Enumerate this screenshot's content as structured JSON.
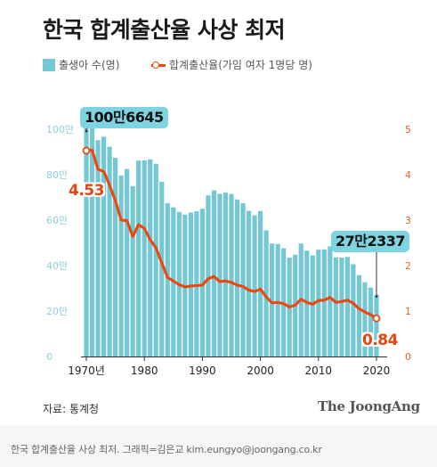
{
  "title": "한국 합계출산율 사상 최저",
  "legend": {
    "bars": "출생아 수(명)",
    "line": "합계출산율(가임 여자 1명당 명)"
  },
  "source": "자료: 통계청",
  "brand": "The JoongAng",
  "footer": "한국 합계출산율 사상 최저. 그래픽=김은교 kim.eungyo@joongang.co.kr",
  "colors": {
    "bar": "#74c8d6",
    "line": "#ea4a12",
    "left_axis": "#8fd0dc",
    "right_axis": "#e8622a",
    "callout_bg": "#7ed4e0"
  },
  "chart_data": {
    "type": "bar",
    "x_tick_labels": [
      "1970년",
      "1980",
      "1990",
      "2000",
      "2010",
      "2020"
    ],
    "x_ticks": [
      1970,
      1980,
      1990,
      2000,
      2010,
      2020
    ],
    "left_axis": {
      "ticks": [
        0,
        20,
        40,
        60,
        80,
        100
      ],
      "tick_labels": [
        "0",
        "20만",
        "40만",
        "60만",
        "80만",
        "100만"
      ],
      "ylim": [
        0,
        100
      ]
    },
    "right_axis": {
      "ticks": [
        0,
        1,
        2,
        3,
        4,
        5
      ],
      "tick_labels": [
        "0",
        "1",
        "2",
        "3",
        "4",
        "5"
      ],
      "ylim": [
        0,
        5
      ]
    },
    "grid": false,
    "years": [
      1970,
      1971,
      1972,
      1973,
      1974,
      1975,
      1976,
      1977,
      1978,
      1979,
      1980,
      1981,
      1982,
      1983,
      1984,
      1985,
      1986,
      1987,
      1988,
      1989,
      1990,
      1991,
      1992,
      1993,
      1994,
      1995,
      1996,
      1997,
      1998,
      1999,
      2000,
      2001,
      2002,
      2003,
      2004,
      2005,
      2006,
      2007,
      2008,
      2009,
      2010,
      2011,
      2012,
      2013,
      2014,
      2015,
      2016,
      2017,
      2018,
      2019,
      2020
    ],
    "series": [
      {
        "type": "bar",
        "values": [
          100.7,
          102.4,
          95.2,
          96.7,
          92.3,
          87.4,
          79.6,
          82.5,
          75.0,
          86.2,
          86.3,
          86.7,
          84.8,
          76.9,
          67.5,
          65.6,
          63.6,
          62.4,
          63.3,
          63.9,
          65.0,
          70.9,
          73.1,
          71.6,
          72.1,
          71.5,
          69.1,
          67.5,
          64.1,
          62.1,
          64.0,
          55.5,
          49.7,
          49.5,
          47.6,
          43.5,
          44.8,
          49.7,
          46.6,
          44.5,
          47.0,
          47.1,
          48.5,
          43.6,
          43.5,
          43.8,
          40.6,
          35.8,
          32.7,
          30.3,
          27.2
        ]
      },
      {
        "type": "line",
        "values": [
          4.53,
          4.54,
          4.12,
          4.07,
          3.77,
          3.43,
          3.0,
          2.99,
          2.64,
          2.9,
          2.82,
          2.57,
          2.39,
          2.06,
          1.74,
          1.66,
          1.58,
          1.53,
          1.55,
          1.56,
          1.57,
          1.71,
          1.76,
          1.65,
          1.66,
          1.63,
          1.57,
          1.54,
          1.46,
          1.43,
          1.48,
          1.31,
          1.18,
          1.19,
          1.16,
          1.09,
          1.13,
          1.26,
          1.19,
          1.15,
          1.23,
          1.24,
          1.3,
          1.19,
          1.21,
          1.24,
          1.17,
          1.05,
          0.98,
          0.92,
          0.84
        ]
      }
    ],
    "annotations": {
      "max_births": "100만6645",
      "min_births": "27만2337",
      "first_rate": "4.53",
      "last_rate": "0.84"
    }
  }
}
